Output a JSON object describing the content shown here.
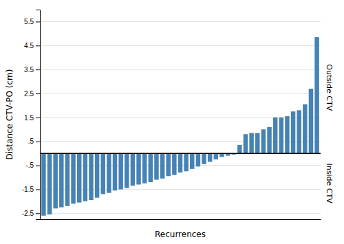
{
  "chart_data": {
    "type": "bar",
    "xlabel": "Recurrences",
    "ylabel": "Distance CTV-PO (cm)",
    "categories": [
      null,
      null,
      null,
      null,
      null,
      null,
      null,
      null,
      null,
      null,
      null,
      null,
      null,
      null,
      null,
      null,
      null,
      null,
      null,
      null,
      null,
      null,
      null,
      null,
      null,
      null,
      null,
      null,
      null,
      null,
      null,
      null,
      null,
      null,
      null,
      null,
      null,
      null,
      null,
      null,
      null,
      null,
      null,
      null,
      null,
      null,
      null
    ],
    "values": [
      -2.6,
      -2.55,
      -2.3,
      -2.25,
      -2.2,
      -2.1,
      -2.05,
      -2.0,
      -1.95,
      -1.85,
      -1.7,
      -1.65,
      -1.55,
      -1.5,
      -1.45,
      -1.35,
      -1.3,
      -1.25,
      -1.2,
      -1.1,
      -1.05,
      -0.95,
      -0.9,
      -0.8,
      -0.75,
      -0.65,
      -0.55,
      -0.45,
      -0.35,
      -0.25,
      -0.15,
      -0.1,
      -0.05,
      0.35,
      0.8,
      0.85,
      0.85,
      1.0,
      1.1,
      1.5,
      1.5,
      1.55,
      1.75,
      1.8,
      2.05,
      2.7,
      4.85
    ],
    "ylim": [
      -2.75,
      6.0
    ],
    "yticks": [
      -2.5,
      -1.5,
      {
        "value": -0.5,
        "label": "-.5"
      },
      {
        "value": 0.5,
        "label": ".5"
      },
      1.5,
      2.5,
      3.5,
      4.5,
      5.5
    ],
    "grid": true,
    "tick_labels": "y",
    "annotations": [
      "Outside CTV",
      "Inside CTV"
    ]
  }
}
